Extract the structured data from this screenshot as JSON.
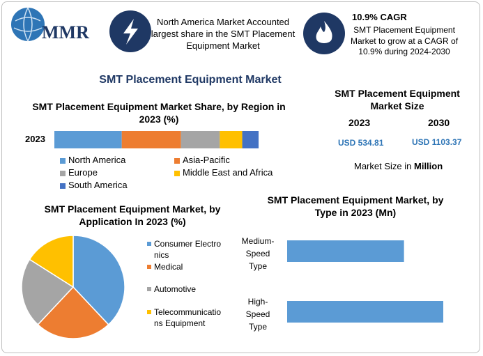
{
  "header": {
    "logo": "MMR",
    "info1": "North America Market Accounted largest share in the SMT Placement Equipment Market",
    "info2_title": "10.9% CAGR",
    "info2_text": "SMT Placement Equipment Market to grow at a CAGR of 10.9% during 2024-2030"
  },
  "title": "SMT Placement Equipment Market",
  "market_size": {
    "title": "SMT Placement Equipment Market Size",
    "years": [
      "2023",
      "2030"
    ],
    "values": [
      "USD 534.81",
      "USD 1103.37"
    ],
    "note": "Market Size in",
    "note_unit": "Million"
  },
  "chart_data": [
    {
      "type": "stacked",
      "title": "SMT Placement Equipment Market Share, by Region in 2023 (%)",
      "categories": [
        "2023"
      ],
      "series": [
        {
          "name": "North America",
          "color": "#5b9bd5",
          "values": [
            33
          ]
        },
        {
          "name": "Asia-Pacific",
          "color": "#ed7d31",
          "values": [
            29
          ]
        },
        {
          "name": "Europe",
          "color": "#a5a5a5",
          "values": [
            19
          ]
        },
        {
          "name": "Middle East and Africa",
          "color": "#ffc000",
          "values": [
            11
          ]
        },
        {
          "name": "South America",
          "color": "#4472c4",
          "values": [
            8
          ]
        }
      ]
    },
    {
      "type": "pie",
      "title": "SMT Placement Equipment Market, by Application In 2023 (%)",
      "categories": [
        "Consumer Electronics",
        "Medical",
        "Automotive",
        "Telecommunications Equipment"
      ],
      "values": [
        38,
        24,
        22,
        16
      ],
      "colors": [
        "#5b9bd5",
        "#ed7d31",
        "#a5a5a5",
        "#ffc000"
      ]
    },
    {
      "type": "hbar",
      "title": "SMT Placement Equipment Market, by Type in 2023 (Mn)",
      "categories": [
        "Medium-Speed Type",
        "High-Speed Type"
      ],
      "values": [
        229,
        306
      ],
      "color": "#5b9bd5"
    }
  ]
}
